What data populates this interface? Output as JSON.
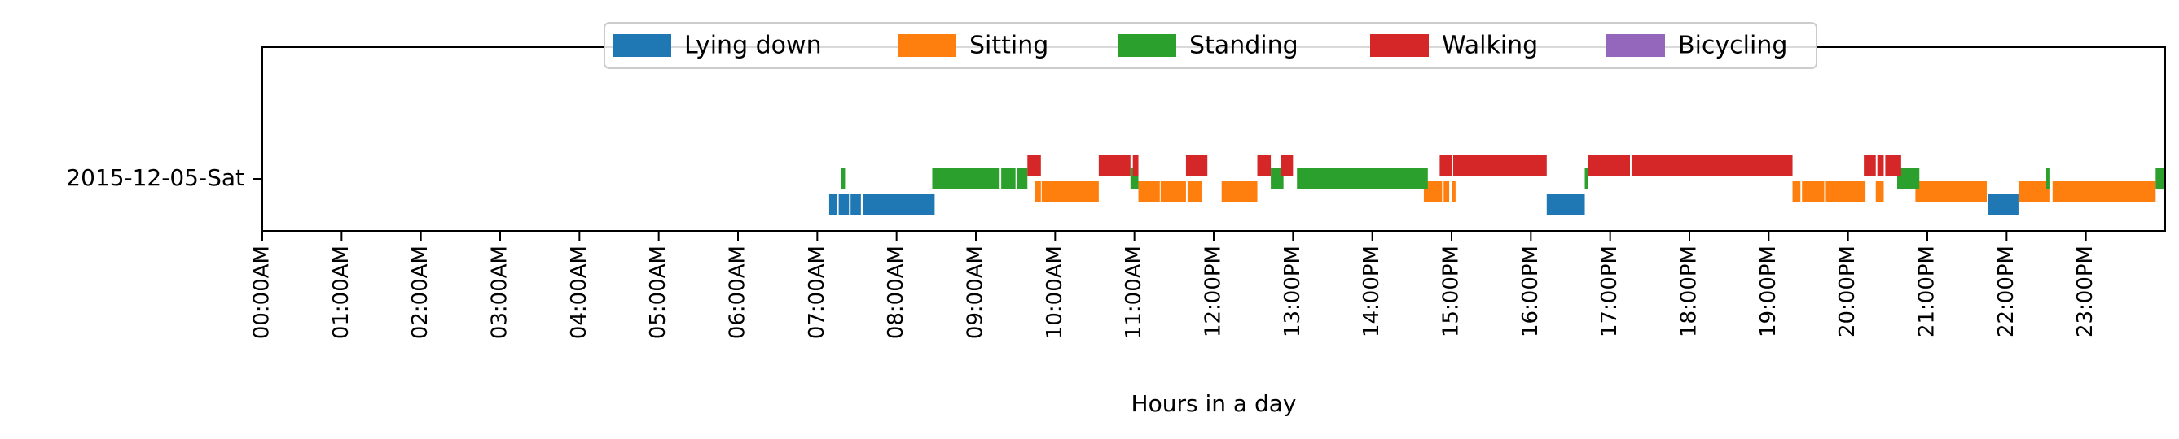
{
  "chart_data": {
    "type": "bar",
    "orientation": "horizontal-timeline",
    "title": "",
    "xlabel": "Hours in a day",
    "ylabel": "",
    "xlim": [
      0,
      24
    ],
    "grid": false,
    "legend_placement": "upper-center",
    "categories": [
      "2015-12-05-Sat"
    ],
    "x_ticks": [
      {
        "value": 0,
        "label": "00:00AM"
      },
      {
        "value": 1,
        "label": "01:00AM"
      },
      {
        "value": 2,
        "label": "02:00AM"
      },
      {
        "value": 3,
        "label": "03:00AM"
      },
      {
        "value": 4,
        "label": "04:00AM"
      },
      {
        "value": 5,
        "label": "05:00AM"
      },
      {
        "value": 6,
        "label": "06:00AM"
      },
      {
        "value": 7,
        "label": "07:00AM"
      },
      {
        "value": 8,
        "label": "08:00AM"
      },
      {
        "value": 9,
        "label": "09:00AM"
      },
      {
        "value": 10,
        "label": "10:00AM"
      },
      {
        "value": 11,
        "label": "11:00AM"
      },
      {
        "value": 12,
        "label": "12:00PM"
      },
      {
        "value": 13,
        "label": "13:00PM"
      },
      {
        "value": 14,
        "label": "14:00PM"
      },
      {
        "value": 15,
        "label": "15:00PM"
      },
      {
        "value": 16,
        "label": "16:00PM"
      },
      {
        "value": 17,
        "label": "17:00PM"
      },
      {
        "value": 18,
        "label": "18:00PM"
      },
      {
        "value": 19,
        "label": "19:00PM"
      },
      {
        "value": 20,
        "label": "20:00PM"
      },
      {
        "value": 21,
        "label": "21:00PM"
      },
      {
        "value": 22,
        "label": "22:00PM"
      },
      {
        "value": 23,
        "label": "23:00PM"
      }
    ],
    "series": [
      {
        "name": "Lying down",
        "color": "#1f77b4",
        "intervals": [
          [
            7.15,
            7.25
          ],
          [
            7.27,
            7.4
          ],
          [
            7.42,
            7.55
          ],
          [
            7.58,
            8.48
          ],
          [
            16.2,
            16.68
          ],
          [
            21.77,
            22.15
          ]
        ]
      },
      {
        "name": "Sitting",
        "color": "#ff7f0e",
        "intervals": [
          [
            9.75,
            9.82
          ],
          [
            9.83,
            10.55
          ],
          [
            11.05,
            11.32
          ],
          [
            11.33,
            11.65
          ],
          [
            11.67,
            11.85
          ],
          [
            12.1,
            12.55
          ],
          [
            14.65,
            14.88
          ],
          [
            14.9,
            14.97
          ],
          [
            15.0,
            15.05
          ],
          [
            19.3,
            19.4
          ],
          [
            19.42,
            19.7
          ],
          [
            19.72,
            20.22
          ],
          [
            20.35,
            20.45
          ],
          [
            20.85,
            21.75
          ],
          [
            22.15,
            22.55
          ],
          [
            22.58,
            23.88
          ]
        ]
      },
      {
        "name": "Standing",
        "color": "#2ca02c",
        "intervals": [
          [
            7.3,
            7.35
          ],
          [
            8.45,
            9.3
          ],
          [
            9.32,
            9.5
          ],
          [
            9.52,
            9.65
          ],
          [
            10.95,
            11.05
          ],
          [
            12.72,
            12.88
          ],
          [
            13.05,
            14.7
          ],
          [
            16.68,
            16.72
          ],
          [
            20.62,
            20.9
          ],
          [
            22.5,
            22.55
          ],
          [
            23.88,
            24.0
          ]
        ]
      },
      {
        "name": "Walking",
        "color": "#d62728",
        "intervals": [
          [
            9.65,
            9.82
          ],
          [
            10.55,
            10.95
          ],
          [
            10.98,
            11.05
          ],
          [
            11.65,
            11.92
          ],
          [
            12.55,
            12.72
          ],
          [
            12.85,
            13.0
          ],
          [
            14.85,
            15.0
          ],
          [
            15.02,
            16.2
          ],
          [
            16.72,
            17.25
          ],
          [
            17.27,
            19.3
          ],
          [
            20.2,
            20.35
          ],
          [
            20.37,
            20.45
          ],
          [
            20.47,
            20.67
          ]
        ]
      },
      {
        "name": "Bicycling",
        "color": "#9467bd",
        "intervals": []
      }
    ]
  }
}
